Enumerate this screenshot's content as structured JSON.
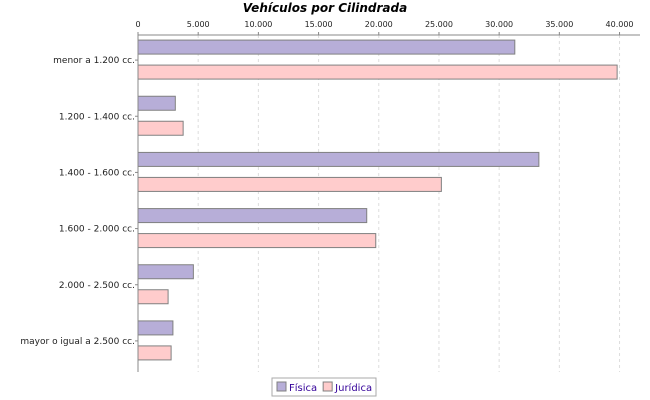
{
  "chart_data": {
    "type": "bar",
    "orientation": "horizontal",
    "title": "Vehículos por Cilindrada",
    "categories": [
      "menor a 1.200 cc.",
      "1.200 - 1.400 cc.",
      "1.400 - 1.600 cc.",
      "1.600 - 2.000 cc.",
      "2.000 - 2.500 cc.",
      "mayor o igual a 2.500 cc."
    ],
    "series": [
      {
        "name": "Física",
        "color": "#b7aed8",
        "values": [
          31300,
          3100,
          33300,
          19000,
          4600,
          2900
        ]
      },
      {
        "name": "Jurídica",
        "color": "#ffcccc",
        "values": [
          39800,
          3750,
          25200,
          19750,
          2500,
          2750
        ]
      }
    ],
    "xlim": [
      0,
      41700
    ],
    "ticks": [
      0,
      5000,
      10000,
      15000,
      20000,
      25000,
      30000,
      35000,
      40000
    ],
    "tick_labels": [
      "0",
      "5.000",
      "10.000",
      "15.000",
      "20.000",
      "25.000",
      "30.000",
      "35.000",
      "40.000"
    ],
    "axis_position": "top",
    "grid": true,
    "legend_position": "bottom"
  }
}
